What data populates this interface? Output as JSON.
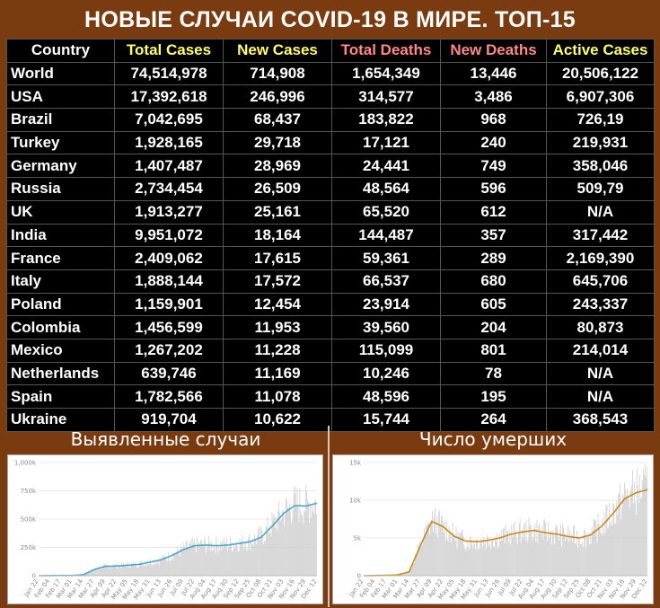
{
  "title": "НОВЫЕ СЛУЧАИ COVID-19 В МИРЕ. ТОП-15",
  "colors": {
    "yellow": "#ffff66",
    "pink": "#ff8888",
    "header_white": "#ffffff",
    "line_blue": "#45a8c8",
    "line_orange": "#c8891e",
    "bar_gray": "#c8c8c8"
  },
  "table": {
    "headers": [
      "Country",
      "Total Cases",
      "New Cases",
      "Total Deaths",
      "New Deaths",
      "Active Cases"
    ],
    "rows": [
      [
        "World",
        "74,514,978",
        "714,908",
        "1,654,349",
        "13,446",
        "20,506,122"
      ],
      [
        "USA",
        "17,392,618",
        "246,996",
        "314,577",
        "3,486",
        "6,907,306"
      ],
      [
        "Brazil",
        "7,042,695",
        "68,437",
        "183,822",
        "968",
        "726,19"
      ],
      [
        "Turkey",
        "1,928,165",
        "29,718",
        "17,121",
        "240",
        "219,931"
      ],
      [
        "Germany",
        "1,407,487",
        "28,969",
        "24,441",
        "749",
        "358,046"
      ],
      [
        "Russia",
        "2,734,454",
        "26,509",
        "48,564",
        "596",
        "509,79"
      ],
      [
        "UK",
        "1,913,277",
        "25,161",
        "65,520",
        "612",
        "N/A"
      ],
      [
        "India",
        "9,951,072",
        "18,164",
        "144,487",
        "357",
        "317,442"
      ],
      [
        "France",
        "2,409,062",
        "17,615",
        "59,361",
        "289",
        "2,169,390"
      ],
      [
        "Italy",
        "1,888,144",
        "17,572",
        "66,537",
        "680",
        "645,706"
      ],
      [
        "Poland",
        "1,159,901",
        "12,454",
        "23,914",
        "605",
        "243,337"
      ],
      [
        "Colombia",
        "1,456,599",
        "11,953",
        "39,560",
        "204",
        "80,873"
      ],
      [
        "Mexico",
        "1,267,202",
        "11,228",
        "115,099",
        "801",
        "214,014"
      ],
      [
        "Netherlands",
        "639,746",
        "11,169",
        "10,246",
        "78",
        "N/A"
      ],
      [
        "Spain",
        "1,782,566",
        "11,078",
        "48,596",
        "195",
        "N/A"
      ],
      [
        "Ukraine",
        "919,704",
        "10,622",
        "15,744",
        "264",
        "368,543"
      ]
    ]
  },
  "panels": {
    "cases_title": "Выявленные случаи",
    "deaths_title": "Число умерших"
  },
  "chart_data": [
    {
      "type": "bar",
      "ylim": [
        0,
        1000000
      ],
      "ytick_labels": [
        "1,000k",
        "750k",
        "500k",
        "250k",
        "0"
      ],
      "xtick_labels": [
        "Jan 22",
        "Feb 04",
        "Feb 17",
        "Mar 01",
        "Mar 14",
        "Mar 27",
        "Apr 09",
        "Apr 22",
        "May 05",
        "May 18",
        "May 31",
        "Jun 13",
        "Jun 26",
        "Jul 09",
        "Jul 22",
        "Aug 04",
        "Aug 17",
        "Aug 30",
        "Sep 12",
        "Sep 25",
        "Oct 08",
        "Oct 21",
        "Nov 03",
        "Nov 16",
        "Nov 29",
        "Dec 12"
      ],
      "avg_values": [
        0,
        1000,
        2000,
        1500,
        8000,
        55000,
        82000,
        85000,
        92000,
        100000,
        120000,
        140000,
        180000,
        230000,
        265000,
        270000,
        265000,
        270000,
        285000,
        300000,
        340000,
        440000,
        550000,
        620000,
        615000,
        640000
      ]
    },
    {
      "type": "bar",
      "ylim": [
        0,
        15000
      ],
      "ytick_labels": [
        "15k",
        "10k",
        "5k",
        "0"
      ],
      "xtick_labels": [
        "Jan 22",
        "Feb 04",
        "Feb 17",
        "Mar 01",
        "Mar 14",
        "Mar 27",
        "Apr 09",
        "Apr 22",
        "May 05",
        "May 18",
        "May 31",
        "Jun 13",
        "Jun 26",
        "Jul 09",
        "Jul 22",
        "Aug 04",
        "Aug 17",
        "Aug 30",
        "Sep 12",
        "Sep 25",
        "Oct 08",
        "Oct 21",
        "Nov 03",
        "Nov 16",
        "Nov 29",
        "Dec 12"
      ],
      "avg_values": [
        0,
        20,
        50,
        100,
        500,
        4000,
        7200,
        6500,
        5200,
        4600,
        4500,
        4700,
        5000,
        5500,
        5800,
        6000,
        5700,
        5500,
        5200,
        5000,
        5400,
        6600,
        8300,
        10200,
        11000,
        11400
      ]
    }
  ]
}
